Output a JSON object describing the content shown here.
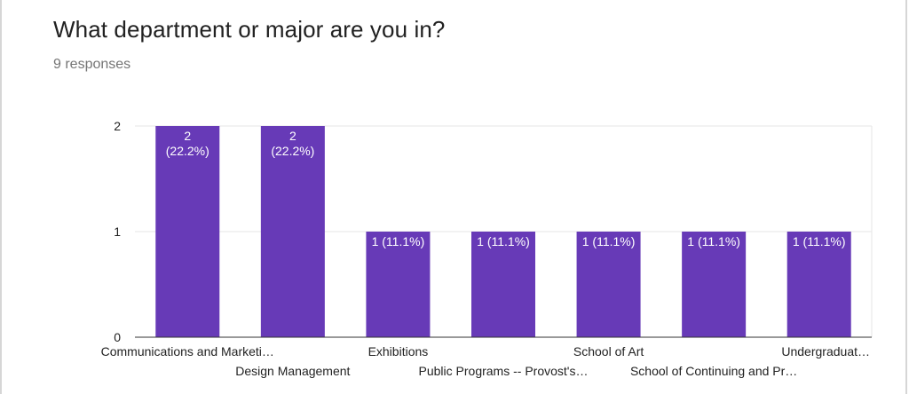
{
  "question": {
    "title": "What department or major are you in?",
    "responses": "9 responses"
  },
  "colors": {
    "bar": "#673ab7",
    "grid": "#e6e6e6",
    "axis": "#333333"
  },
  "chart_data": {
    "type": "bar",
    "categories": [
      "Communications and Marketi…",
      "Design Management",
      "Exhibitions",
      "Public Programs -- Provost's…",
      "School of Art",
      "School of Continuing and Pr…",
      "Undergraduat…"
    ],
    "values": [
      2,
      2,
      1,
      1,
      1,
      1,
      1
    ],
    "data_labels": [
      [
        "2",
        "(22.2%)"
      ],
      [
        "2",
        "(22.2%)"
      ],
      [
        "1 (11.1%)"
      ],
      [
        "1 (11.1%)"
      ],
      [
        "1 (11.1%)"
      ],
      [
        "1 (11.1%)"
      ],
      [
        "1 (11.1%)"
      ]
    ],
    "yticks": [
      "0",
      "1",
      "2"
    ],
    "ylim": [
      0,
      2
    ],
    "grid": true,
    "legend": "none"
  }
}
